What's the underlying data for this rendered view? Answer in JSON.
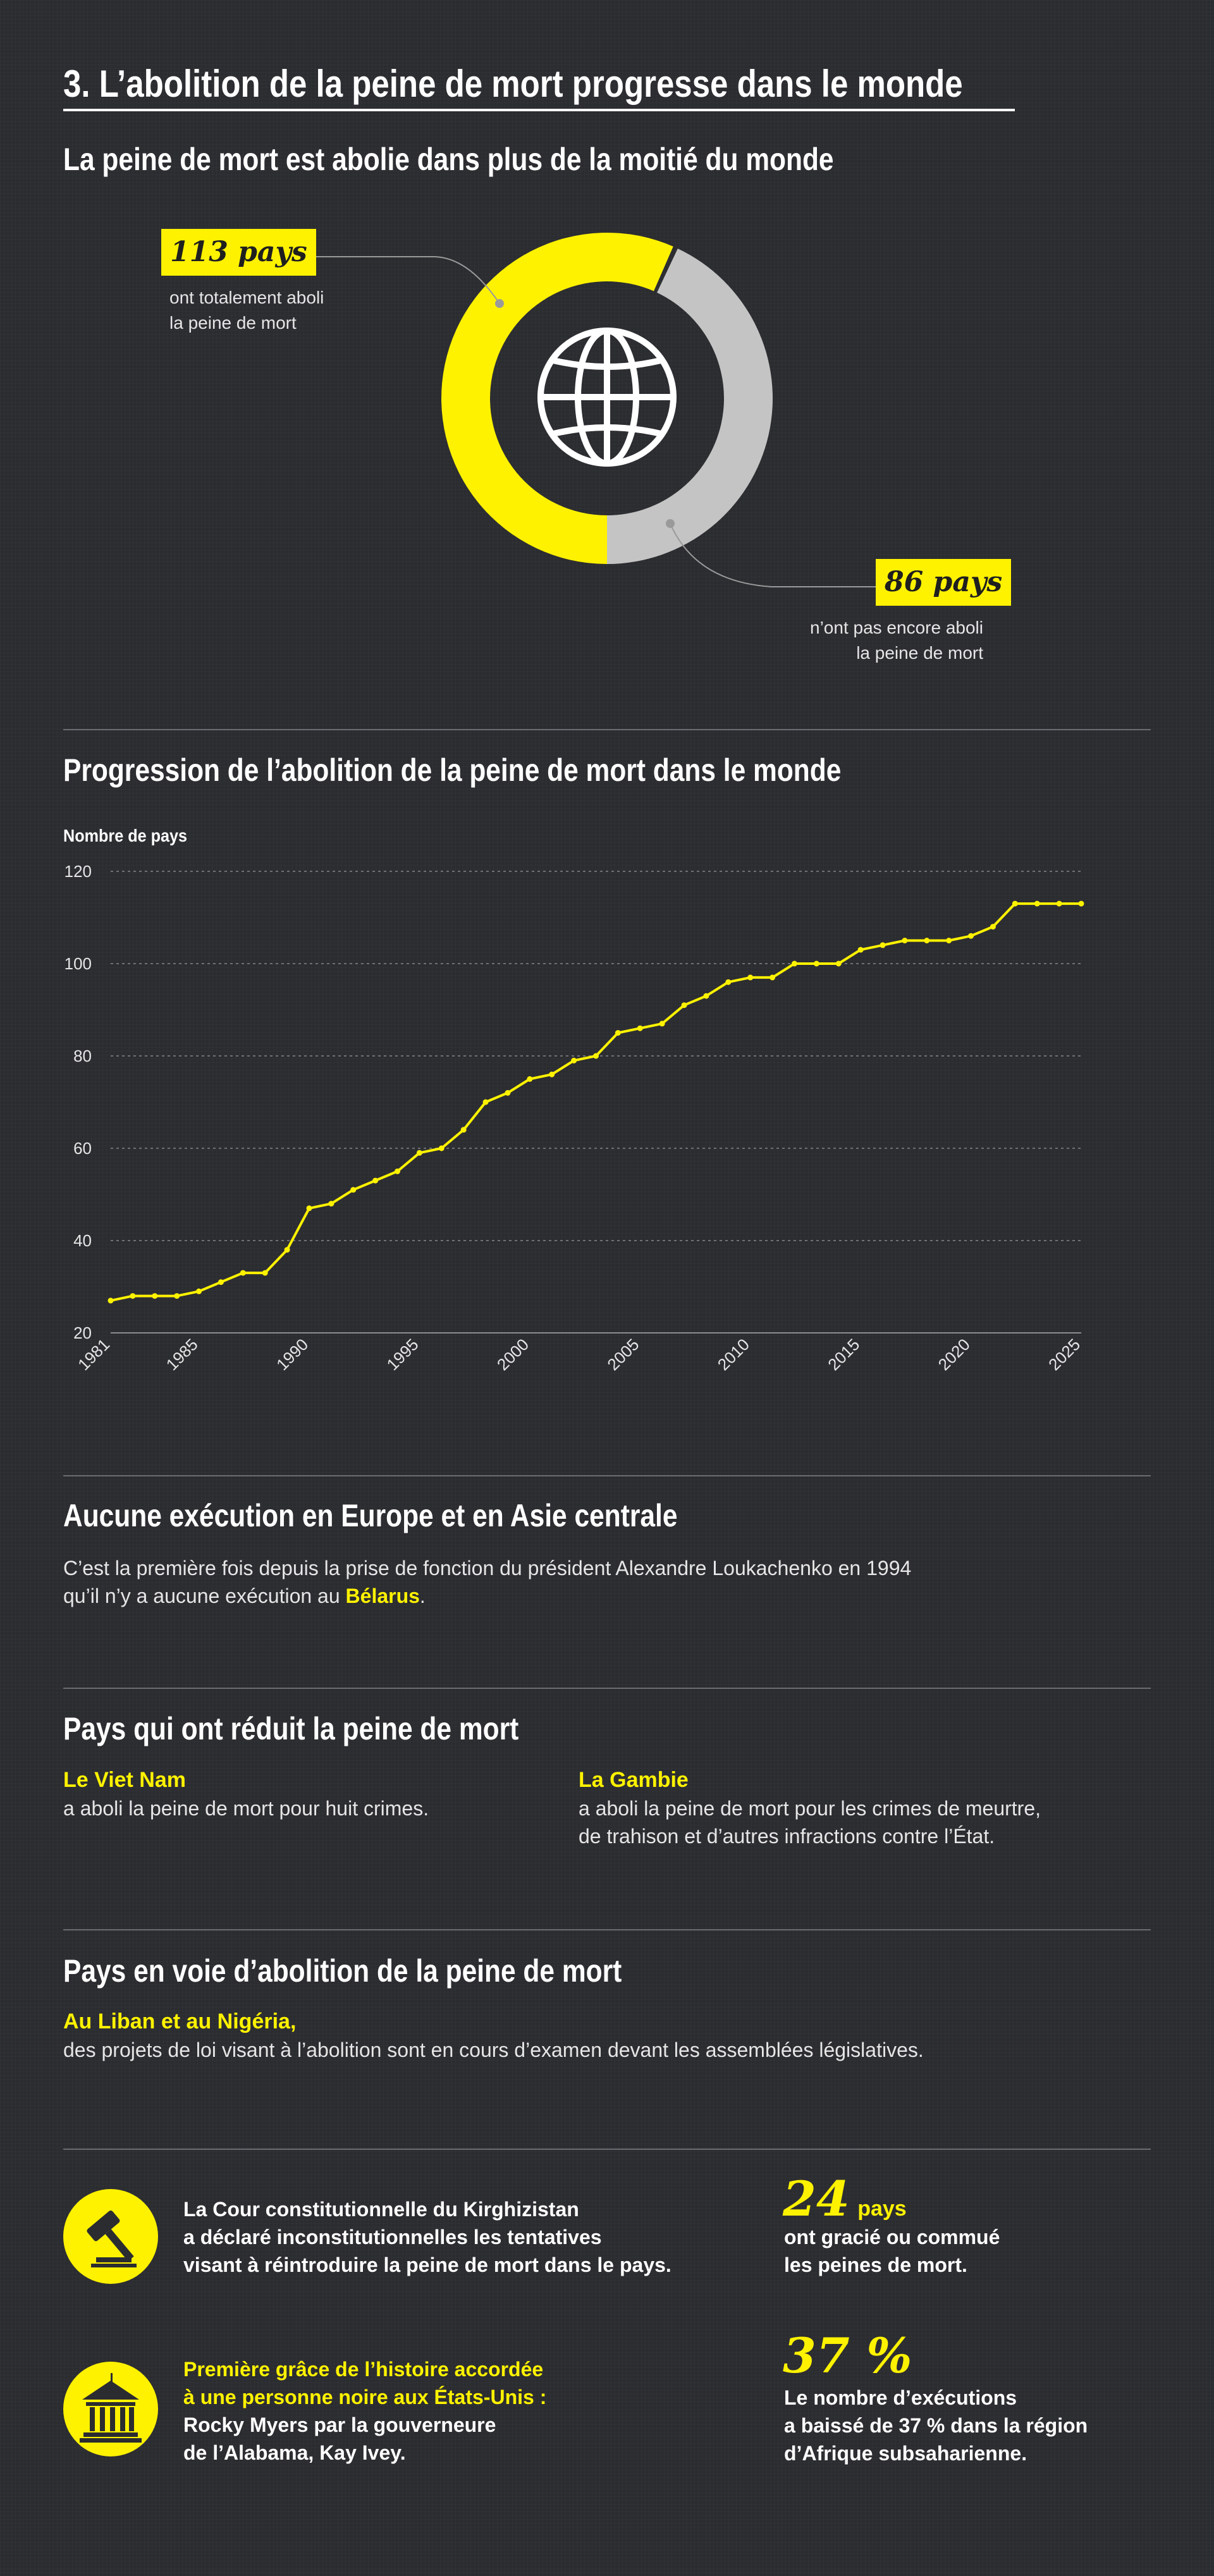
{
  "title": "3. L’abolition de la peine de mort progresse dans le monde",
  "donut": {
    "heading": "La peine de mort est abolie dans plus de la moitié du monde",
    "abolished": {
      "count_label": "113 pays",
      "desc1": "ont totalement aboli",
      "desc2": "la peine de mort",
      "value": 113
    },
    "not_abolished": {
      "count_label": "86 pays",
      "desc1": "n’ont pas encore aboli",
      "desc2": "la peine de mort",
      "value": 86
    },
    "center_icon": "globe-icon",
    "colors": {
      "abolished": "#fff200",
      "not_abolished": "#c4c4c4"
    }
  },
  "chart_data": {
    "type": "line",
    "title": "Progression de l’abolition de la peine de mort dans le monde",
    "ylabel": "Nombre de pays",
    "xlabel": "",
    "ylim": [
      20,
      120
    ],
    "yticks": [
      20,
      40,
      60,
      80,
      100,
      120
    ],
    "xlim": [
      1981,
      2025
    ],
    "xticks": [
      1981,
      1985,
      1990,
      1995,
      2000,
      2005,
      2010,
      2015,
      2020,
      2025
    ],
    "grid": true,
    "color": "#fff200",
    "x": [
      1981,
      1982,
      1983,
      1984,
      1985,
      1986,
      1987,
      1988,
      1989,
      1990,
      1991,
      1992,
      1993,
      1994,
      1995,
      1996,
      1997,
      1998,
      1999,
      2000,
      2001,
      2002,
      2003,
      2004,
      2005,
      2006,
      2007,
      2008,
      2009,
      2010,
      2011,
      2012,
      2013,
      2014,
      2015,
      2016,
      2017,
      2018,
      2019,
      2020,
      2021,
      2022,
      2023,
      2024,
      2025
    ],
    "y": [
      27,
      28,
      28,
      28,
      29,
      31,
      33,
      33,
      38,
      47,
      48,
      51,
      53,
      55,
      59,
      60,
      64,
      70,
      72,
      75,
      76,
      79,
      80,
      85,
      86,
      87,
      91,
      93,
      96,
      97,
      97,
      100,
      100,
      100,
      103,
      104,
      105,
      105,
      105,
      106,
      108,
      113,
      113,
      113,
      113
    ]
  },
  "europe": {
    "heading": "Aucune exécution en Europe et en Asie centrale",
    "line1": "C’est la première fois depuis la prise de fonction du président Alexandre Loukachenko en 1994",
    "line2_before": "qu’il n’y a aucune exécution au ",
    "line2_highlight": "Bélarus",
    "line2_after": "."
  },
  "reduced": {
    "heading": "Pays qui ont réduit la peine de mort",
    "left": {
      "country": "Le Viet Nam",
      "text1": "a aboli la peine de mort pour huit crimes."
    },
    "right": {
      "country": "La Gambie",
      "text1": "a aboli la peine de mort pour les crimes de meurtre,",
      "text2": "de trahison et d’autres infractions contre l’État."
    }
  },
  "pending": {
    "heading": "Pays en voie d’abolition de la peine de mort",
    "country": "Au Liban et au Nigéria,",
    "text": "des projets de loi visant à l’abolition sont en cours d’examen devant les assemblées législatives."
  },
  "facts": {
    "kyrgyz": {
      "icon": "gavel-icon",
      "line1": "La Cour constitutionnelle du Kirghizistan",
      "line2": "a déclaré inconstitutionnelles les tentatives",
      "line3": "visant à réintroduire la peine de mort dans le pays."
    },
    "usa": {
      "icon": "courthouse-icon",
      "hl1": "Première grâce de l’histoire accordée",
      "hl2": "à une personne noire aux États-Unis :",
      "line3": "Rocky Myers par la gouverneure",
      "line4": "de l’Alabama, Kay Ivey."
    },
    "pardons": {
      "number": "24",
      "unit": "pays",
      "line1": "ont gracié ou commué",
      "line2": "les peines de mort."
    },
    "executions": {
      "number": "37 %",
      "line1": "Le nombre d’exécutions",
      "line2": "a baissé de 37 % dans la région",
      "line3": "d’Afrique subsaharienne."
    }
  }
}
